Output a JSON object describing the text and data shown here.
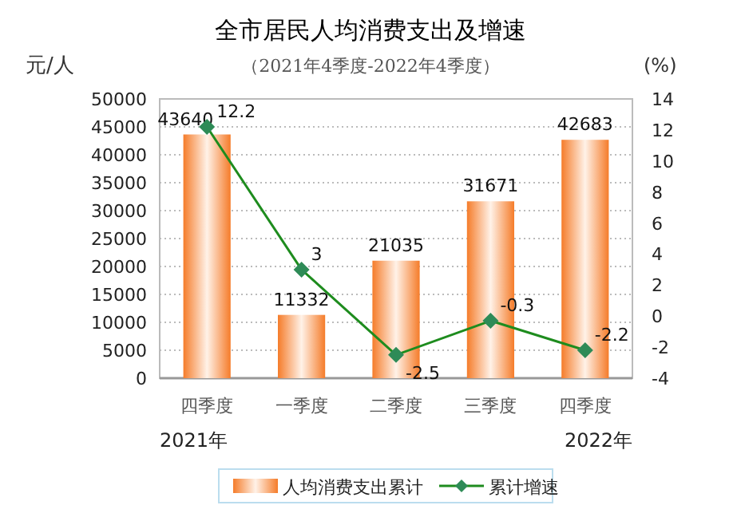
{
  "chart_data": {
    "type": "bar",
    "title": "全市居民人均消费支出及增速",
    "subtitle": "（2021年4季度-2022年4季度）",
    "ylabel": "元/人",
    "y2label": "(%)",
    "categories": [
      "四季度",
      "一季度",
      "二季度",
      "三季度",
      "四季度"
    ],
    "series": [
      {
        "name": "人均消费支出累计",
        "color": "#f57c2a",
        "values": [
          43640,
          11332,
          21035,
          31671,
          42683
        ]
      },
      {
        "name": "累计增速",
        "type": "line",
        "axis": "y2",
        "color": "#1e8c1e",
        "marker": "diamond",
        "values": [
          12.2,
          3,
          -2.5,
          -0.3,
          -2.2
        ]
      }
    ],
    "annotations": [
      "2021年",
      "2022年"
    ],
    "ylim": [
      0,
      50000
    ],
    "yticks": [
      0,
      5000,
      10000,
      15000,
      20000,
      25000,
      30000,
      35000,
      40000,
      45000,
      50000
    ],
    "y2lim": [
      -4,
      14
    ],
    "y2ticks": [
      -4,
      -2,
      0,
      2,
      4,
      6,
      8,
      10,
      12,
      14
    ],
    "grid": "y",
    "legend": "bottom",
    "data_labels": true
  }
}
